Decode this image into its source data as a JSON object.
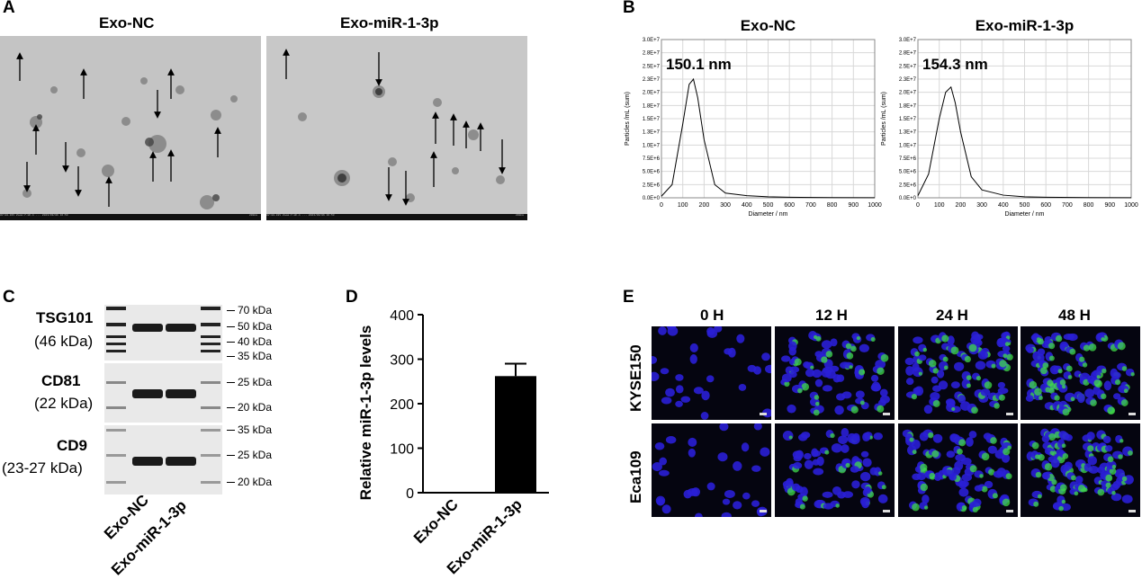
{
  "panels": {
    "A": "A",
    "B": "B",
    "C": "C",
    "D": "D",
    "E": "E"
  },
  "panel_a": {
    "titles": [
      "Exo-NC",
      "Exo-miR-1-3p"
    ],
    "tem_footer_left": [
      "HV:80.0kV Zoom:7.HC-1 ... 2023/09/06 16:53",
      "HV:80.0kV Zoom:7.HC-1 ... 2023/09/06 16:53"
    ],
    "tem_footer_right": [
      "200nm",
      "200nm"
    ]
  },
  "chart_data": [
    {
      "type": "line",
      "title": "Exo-NC",
      "annotation": "150.1 nm",
      "xlabel": "Diameter / nm",
      "ylabel": "Particles /mL (sum)",
      "xlim": [
        0,
        1000
      ],
      "ylim": [
        0,
        30000000
      ],
      "xticks": [
        "0",
        "100",
        "200",
        "300",
        "400",
        "500",
        "600",
        "700",
        "800",
        "900",
        "1000"
      ],
      "yticks": [
        "0.0E+0",
        "2.5E+6",
        "5.0E+6",
        "7.5E+6",
        "1.0E+7",
        "1.3E+7",
        "1.5E+7",
        "1.8E+7",
        "2.0E+7",
        "2.3E+7",
        "2.5E+7",
        "2.8E+7",
        "3.0E+7"
      ],
      "x": [
        0,
        50,
        100,
        130,
        150,
        170,
        200,
        250,
        300,
        400,
        500,
        600,
        800,
        1000
      ],
      "y": [
        300000,
        2500000,
        14000000,
        21500000,
        22500000,
        19000000,
        11000000,
        2500000,
        900000,
        400000,
        200000,
        100000,
        50000,
        30000
      ],
      "grid": true
    },
    {
      "type": "line",
      "title": "Exo-miR-1-3p",
      "annotation": "154.3 nm",
      "xlabel": "Diameter / nm",
      "ylabel": "Particles /mL (sum)",
      "xlim": [
        0,
        1000
      ],
      "ylim": [
        0,
        30000000
      ],
      "xticks": [
        "0",
        "100",
        "200",
        "300",
        "400",
        "500",
        "600",
        "700",
        "800",
        "900",
        "1000"
      ],
      "yticks": [
        "0.0E+0",
        "2.5E+6",
        "5.0E+6",
        "7.5E+6",
        "1.0E+7",
        "1.3E+7",
        "1.5E+7",
        "1.8E+7",
        "2.0E+7",
        "2.3E+7",
        "2.5E+7",
        "2.8E+7",
        "3.0E+7"
      ],
      "x": [
        0,
        50,
        100,
        130,
        155,
        175,
        200,
        250,
        300,
        400,
        500,
        600,
        800,
        1000
      ],
      "y": [
        400000,
        4500000,
        15000000,
        20000000,
        21000000,
        18000000,
        12500000,
        4000000,
        1500000,
        500000,
        200000,
        100000,
        50000,
        30000
      ],
      "grid": true
    },
    {
      "type": "bar",
      "ylabel": "Relative miR-1-3p levels",
      "categories": [
        "Exo-NC",
        "Exo-miR-1-3p"
      ],
      "values": [
        1,
        262
      ],
      "error": [
        0,
        28
      ],
      "ylim": [
        0,
        400
      ],
      "yticks": [
        "0",
        "100",
        "200",
        "300",
        "400"
      ]
    }
  ],
  "panel_c": {
    "proteins": [
      {
        "name": "TSG101",
        "size": "(46 kDa)",
        "markers": [
          "70 kDa",
          "50 kDa",
          "40 kDa",
          "35 kDa"
        ]
      },
      {
        "name": "CD81",
        "size": "(22 kDa)",
        "markers": [
          "25 kDa",
          "20 kDa"
        ]
      },
      {
        "name": "CD9",
        "size": "(23-27 kDa)",
        "markers": [
          "35 kDa",
          "25 kDa",
          "20 kDa"
        ]
      }
    ],
    "lanes": [
      "Exo-NC",
      "Exo-miR-1-3p"
    ]
  },
  "panel_e": {
    "timepoints": [
      "0 H",
      "12 H",
      "24 H",
      "48 H"
    ],
    "cell_lines": [
      "KYSE150",
      "Eca109"
    ]
  }
}
